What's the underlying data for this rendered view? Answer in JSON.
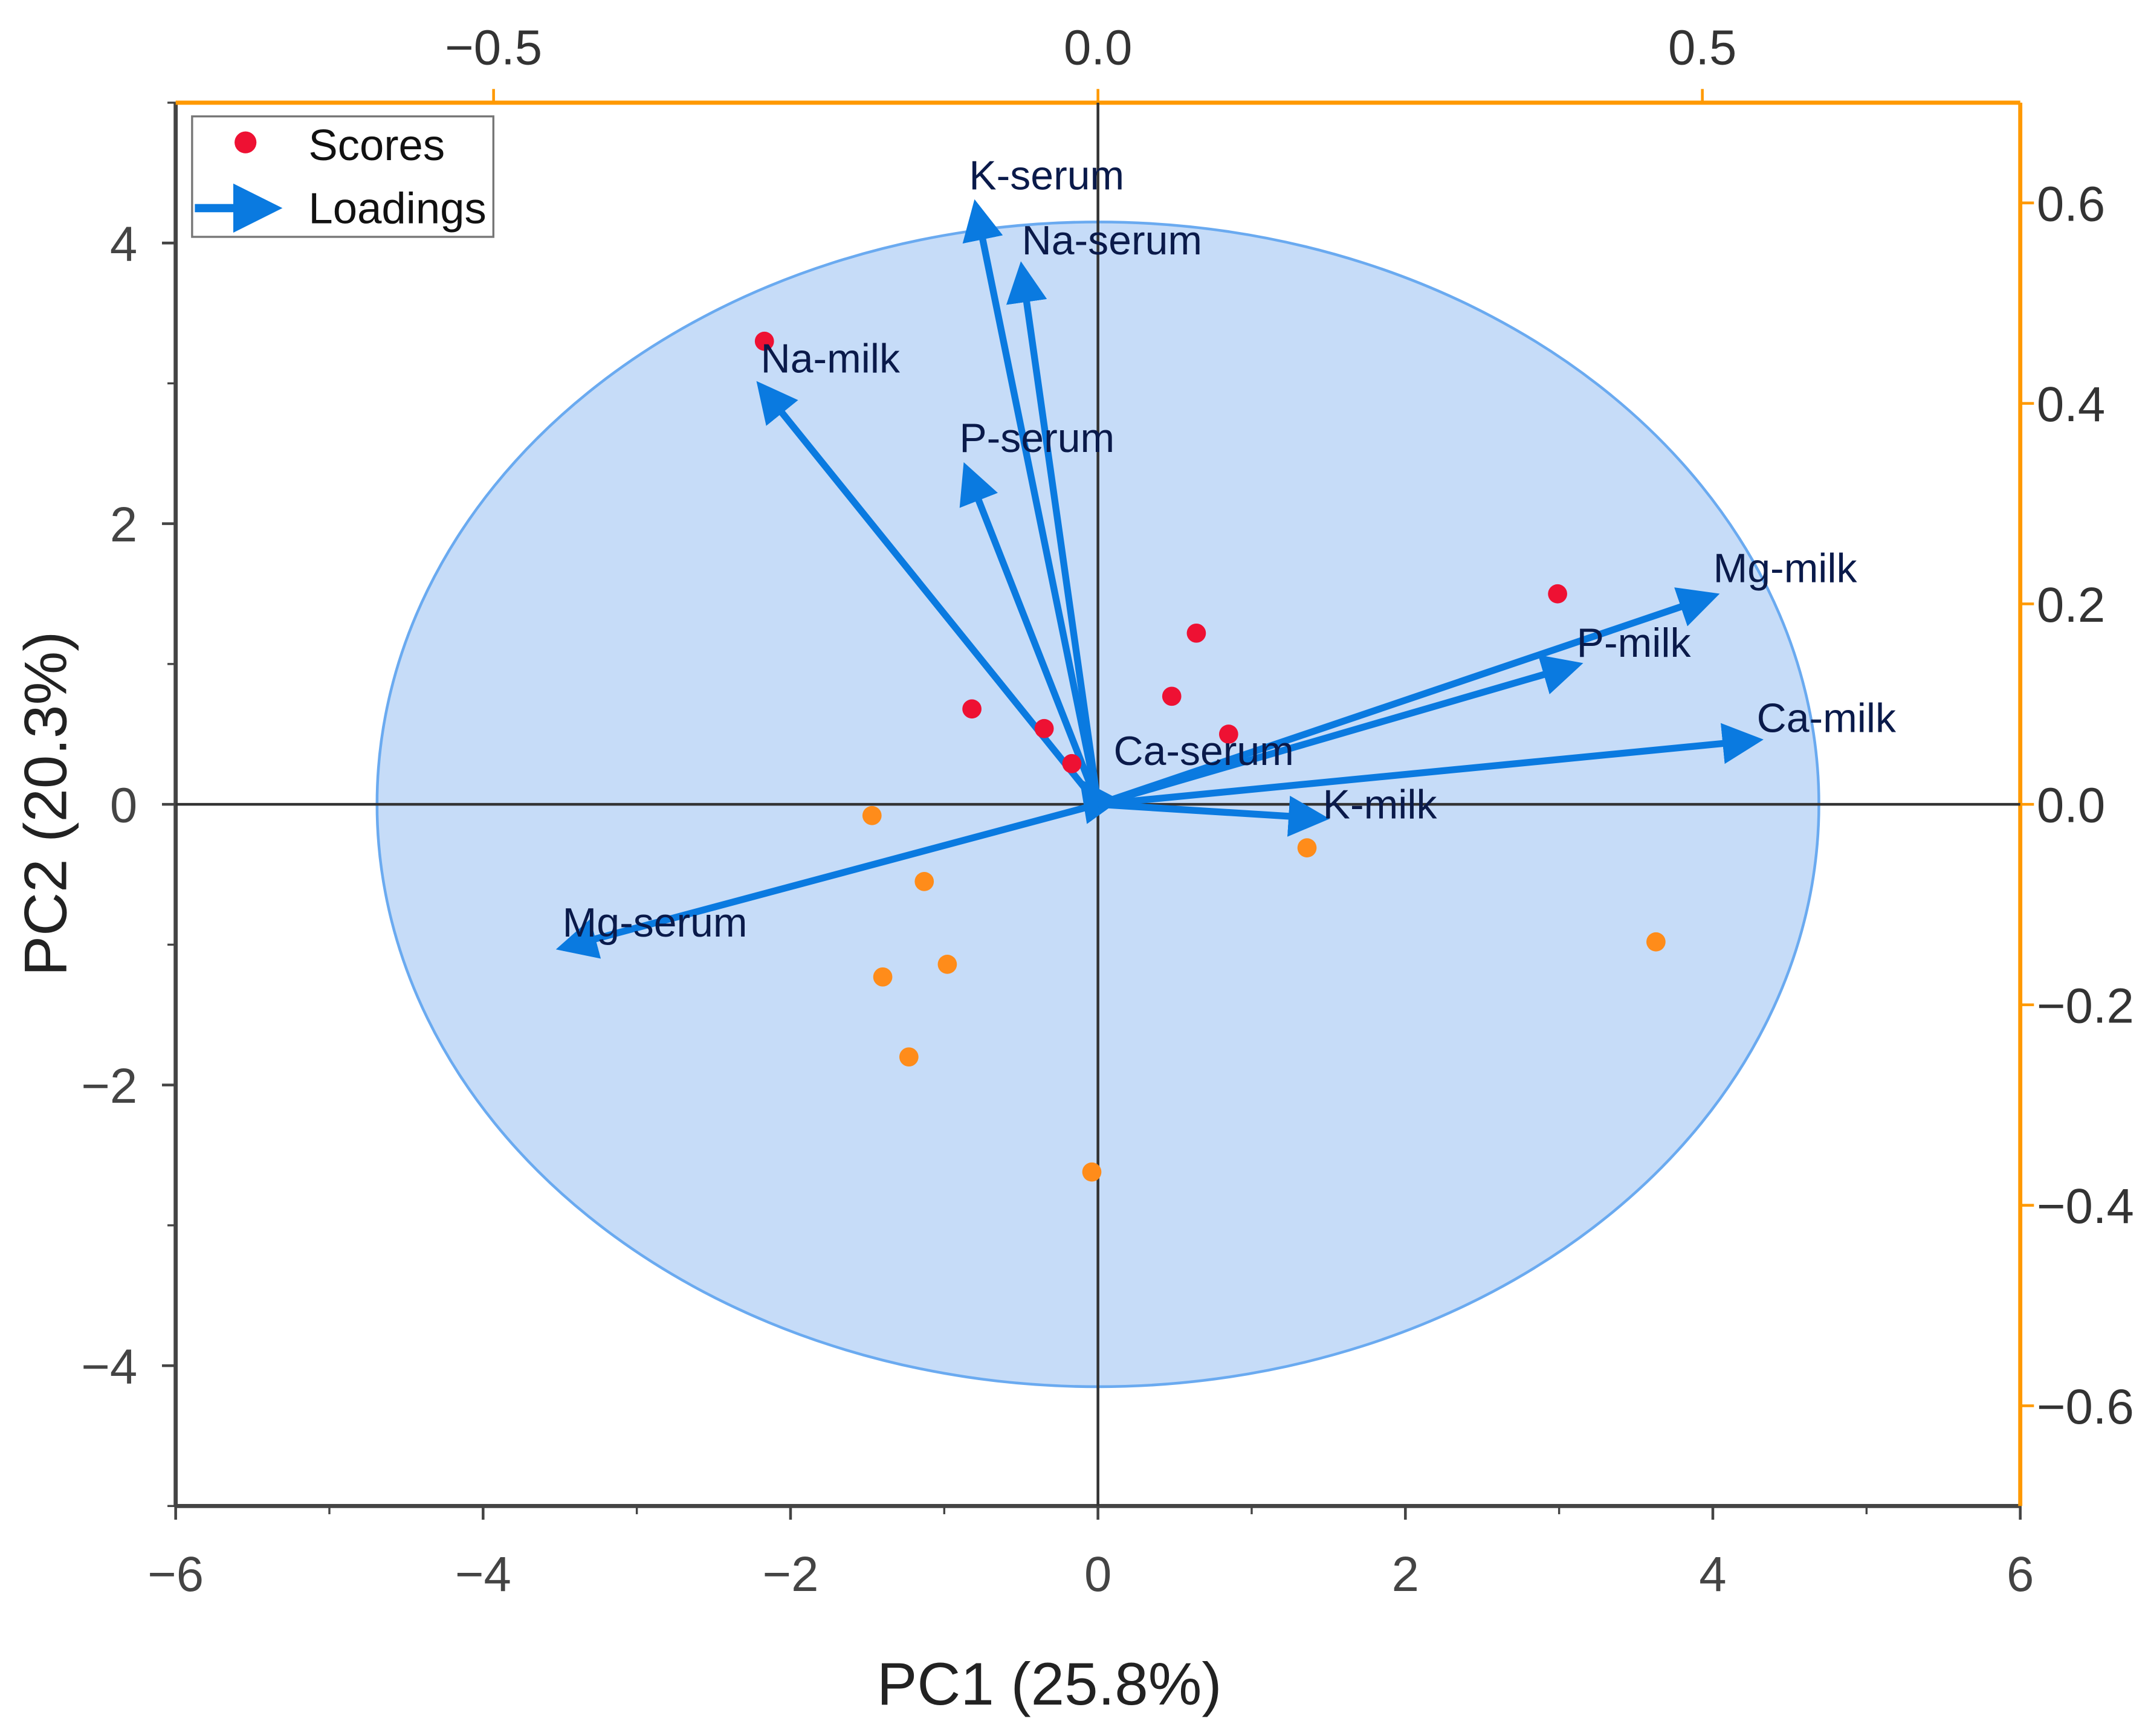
{
  "chart_data": {
    "type": "scatter",
    "subtype": "PCA biplot",
    "xlabel": "PC1 (25.8%)",
    "ylabel": "PC2 (20.3%)",
    "xlim": [
      -6,
      6
    ],
    "ylim": [
      -5,
      5
    ],
    "x_ticks": [
      "-6",
      "-4",
      "-2",
      "0",
      "2",
      "4",
      "6"
    ],
    "y_ticks": [
      "-4",
      "-2",
      "0",
      "2",
      "4"
    ],
    "top_axis": {
      "lim": [
        -0.763,
        0.763
      ],
      "ticks": [
        -0.5,
        0.0,
        0.5
      ],
      "tick_labels": [
        "−0.5",
        "0.0",
        "0.5"
      ],
      "color": "#ff9900"
    },
    "right_axis": {
      "lim": [
        -0.7,
        0.7
      ],
      "ticks": [
        0.6,
        0.4,
        0.2,
        0.0,
        -0.2,
        -0.4,
        -0.6
      ],
      "tick_labels": [
        "0.6",
        "0.4",
        "0.2",
        "0.0",
        "−0.2",
        "−0.4",
        "−0.6"
      ],
      "color": "#ff9900"
    },
    "legend": {
      "position": "top-left",
      "entries": [
        "Scores",
        "Loadings"
      ]
    },
    "confidence_ellipse": {
      "center": [
        0,
        0
      ],
      "semi_axes": [
        4.69,
        4.15
      ],
      "fill": "#c6dcf8",
      "stroke": "#6aaaf0"
    },
    "colors": {
      "score_red": "#ee1133",
      "score_orange": "#ff8c1a",
      "loading": "#0a7ae0",
      "label": "#0a1a4a"
    },
    "scores": {
      "group_red": [
        [
          -2.17,
          3.3
        ],
        [
          -0.82,
          0.68
        ],
        [
          -0.35,
          0.54
        ],
        [
          -0.17,
          0.29
        ],
        [
          0.64,
          1.22
        ],
        [
          0.48,
          0.77
        ],
        [
          0.85,
          0.5
        ],
        [
          2.99,
          1.5
        ]
      ],
      "group_orange": [
        [
          -1.47,
          -0.08
        ],
        [
          -1.13,
          -0.55
        ],
        [
          -1.4,
          -1.23
        ],
        [
          -0.98,
          -1.14
        ],
        [
          -1.23,
          -1.8
        ],
        [
          -0.04,
          -2.62
        ],
        [
          1.36,
          -0.31
        ],
        [
          3.63,
          -0.98
        ]
      ]
    },
    "loadings": [
      {
        "name": "K-serum",
        "x": -0.101,
        "y": 0.597
      },
      {
        "name": "Na-serum",
        "x": -0.063,
        "y": 0.535
      },
      {
        "name": "Na-milk",
        "x": -0.279,
        "y": 0.417
      },
      {
        "name": "P-serum",
        "x": -0.109,
        "y": 0.335
      },
      {
        "name": "Mg-milk",
        "x": 0.509,
        "y": 0.208
      },
      {
        "name": "P-milk",
        "x": 0.396,
        "y": 0.139
      },
      {
        "name": "Ca-milk",
        "x": 0.545,
        "y": 0.064
      },
      {
        "name": "Ca-serum",
        "x": -0.012,
        "y": 0.02
      },
      {
        "name": "K-milk",
        "x": 0.186,
        "y": -0.014
      },
      {
        "name": "Mg-serum",
        "x": -0.443,
        "y": -0.143
      }
    ]
  }
}
